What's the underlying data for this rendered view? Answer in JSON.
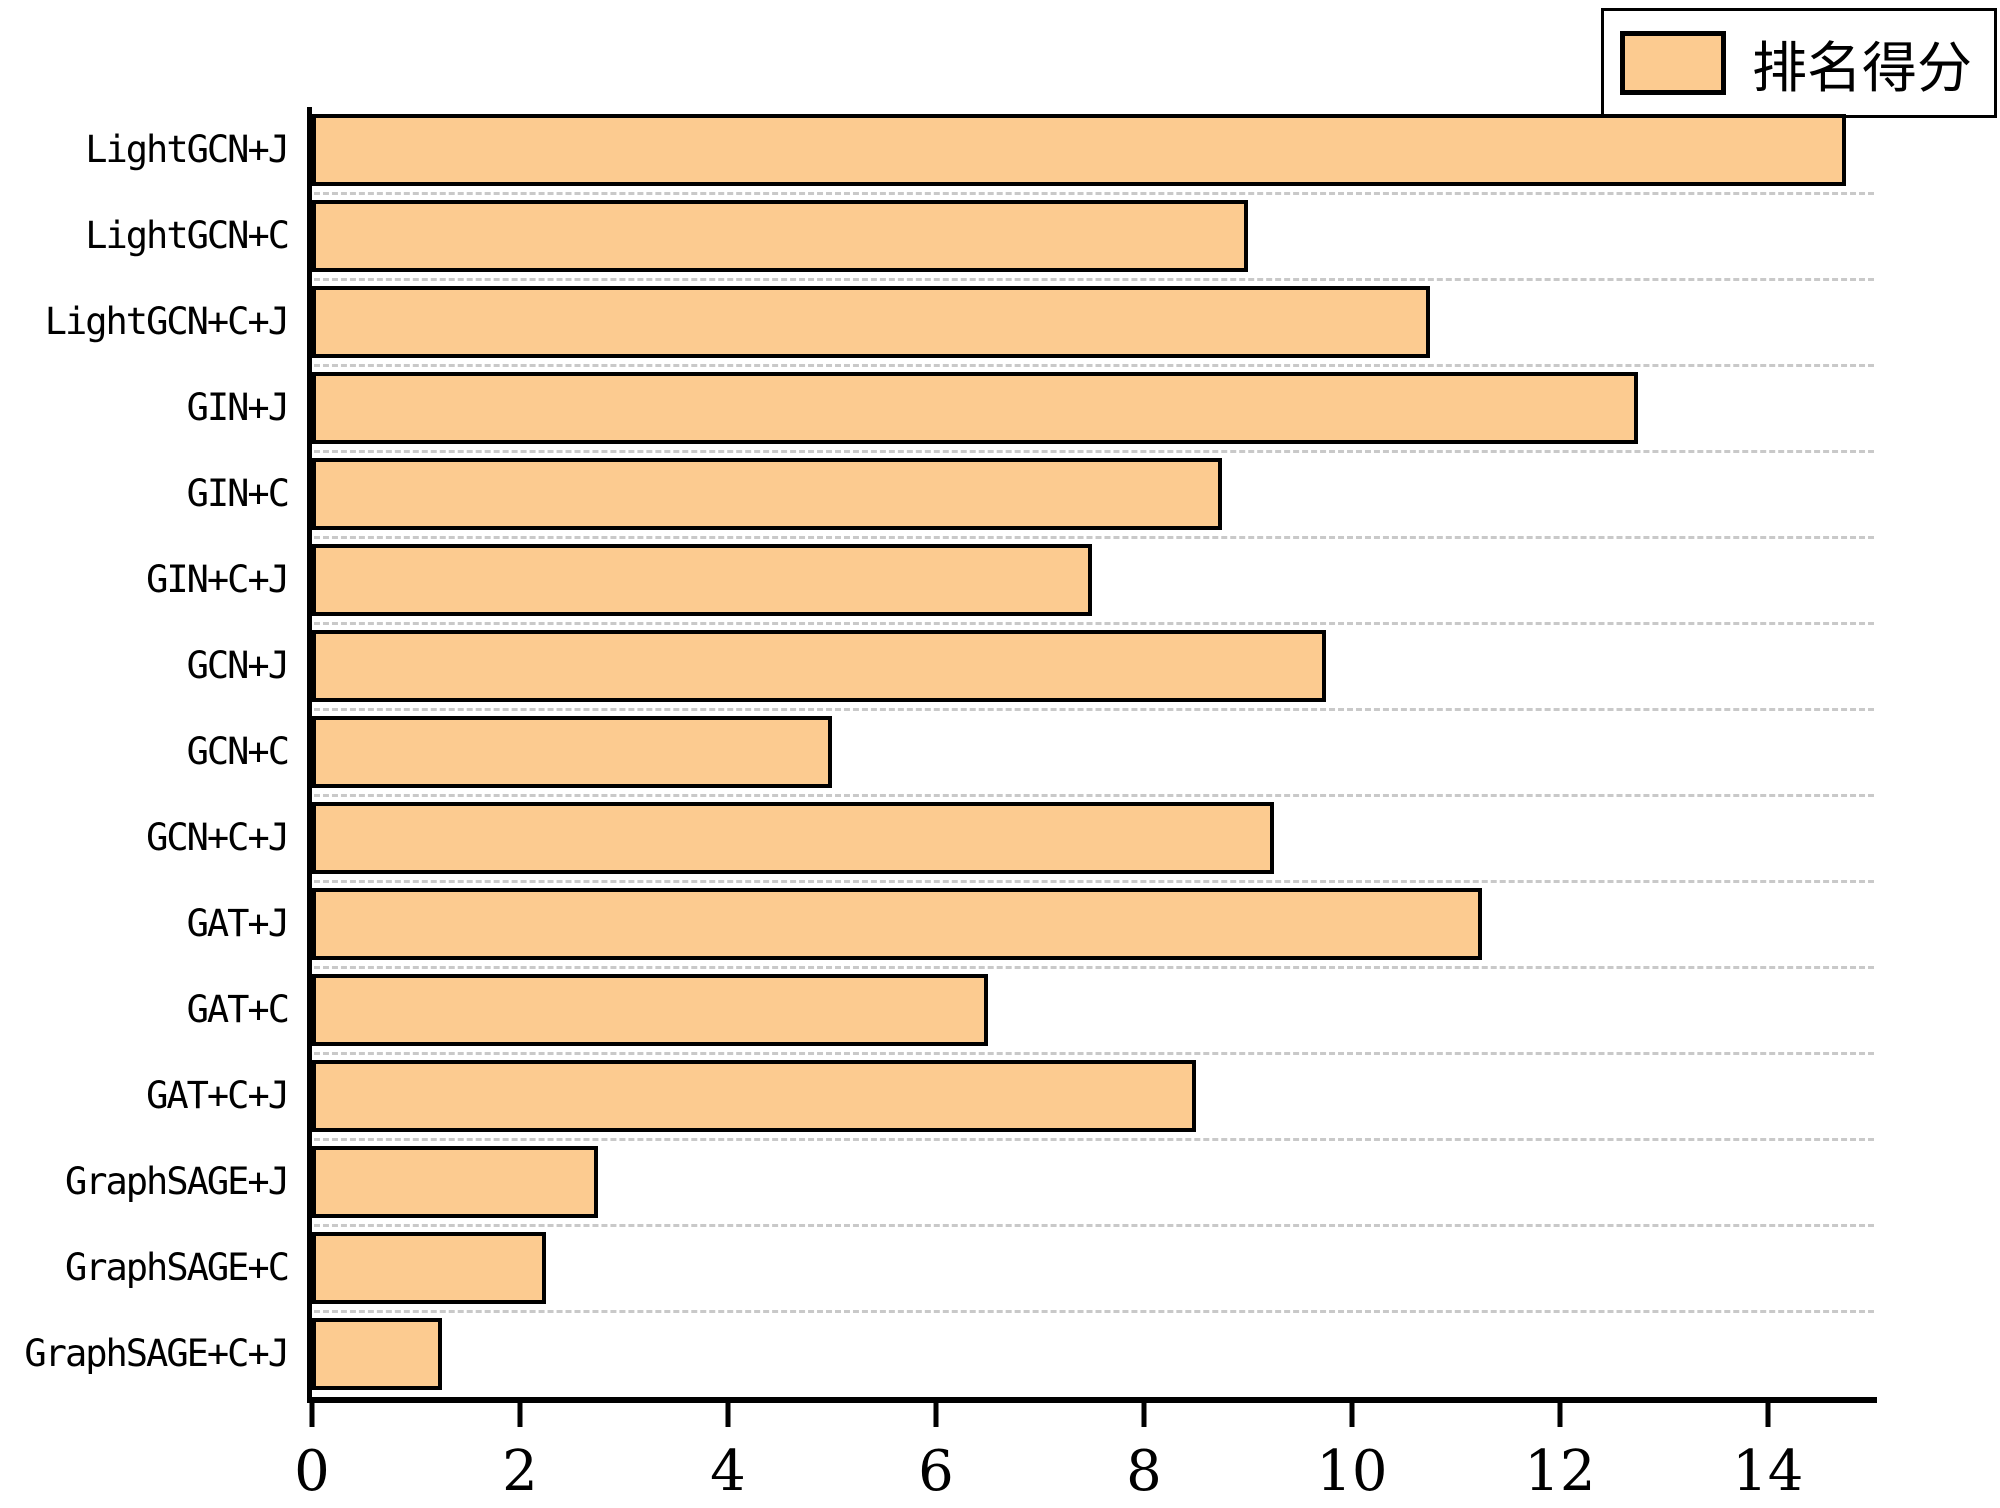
{
  "legend": {
    "label": "排名得分",
    "swatch_color": "#FCCB90"
  },
  "colors": {
    "bar_fill": "#FCCB90",
    "bar_border": "#000000",
    "spine": "#000000",
    "gridline": "#c9c9c9",
    "background": "#ffffff"
  },
  "chart_data": {
    "type": "bar",
    "orientation": "horizontal",
    "title": "",
    "xlabel": "",
    "ylabel": "",
    "series_name": "排名得分",
    "categories": [
      "LightGCN+J",
      "LightGCN+C",
      "LightGCN+C+J",
      "GIN+J",
      "GIN+C",
      "GIN+C+J",
      "GCN+J",
      "GCN+C",
      "GCN+C+J",
      "GAT+J",
      "GAT+C",
      "GAT+C+J",
      "GraphSAGE+J",
      "GraphSAGE+C",
      "GraphSAGE+C+J"
    ],
    "values": [
      14.75,
      9.0,
      10.75,
      12.75,
      8.75,
      7.5,
      9.75,
      5.0,
      9.25,
      11.25,
      6.5,
      8.5,
      2.75,
      2.25,
      1.25
    ],
    "xlim": [
      0,
      15.05
    ],
    "x_ticks": [
      0,
      2,
      4,
      6,
      8,
      10,
      12,
      14
    ],
    "grid": "dashed horizontal lines between category rows",
    "legend_position": "top-right outside plot"
  }
}
